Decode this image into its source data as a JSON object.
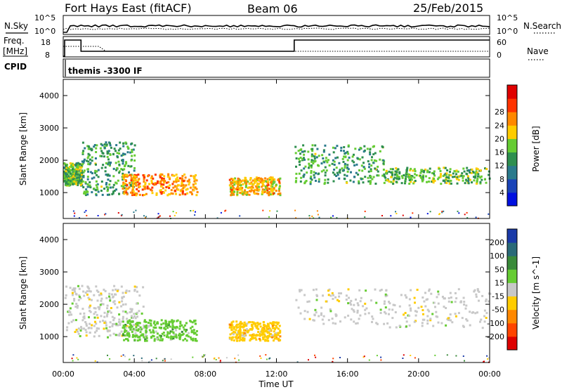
{
  "header": {
    "station": "Fort Hays East (fitACF)",
    "beam": "Beam 06",
    "date": "25/Feb/2015"
  },
  "top_panels": {
    "nsky_label": "N.Sky",
    "nsky_ticks": [
      "10^5",
      "10^0"
    ],
    "nsearch_label": "N.Search",
    "nsearch_ticks": [
      "10^5",
      "10^0"
    ],
    "freq_label": "Freq.",
    "freq_unit": "[MHz]",
    "freq_ticks": [
      "18",
      "8"
    ],
    "nave_label": "Nave",
    "nave_ticks": [
      "60",
      "0"
    ],
    "cpid_label": "CPID",
    "cpid_text": "themis -3300 IF"
  },
  "chart_data": [
    {
      "type": "heatmap",
      "ylabel": "Slant Range [km]",
      "xlabel": "Time UT",
      "x_ticks": [
        "00:00",
        "04:00",
        "08:00",
        "12:00",
        "16:00",
        "20:00",
        "00:00"
      ],
      "xlim_hours": [
        0,
        24
      ],
      "ylim": [
        200,
        4500
      ],
      "y_ticks": [
        1000,
        2000,
        3000,
        4000
      ],
      "colorbar": {
        "label": "Power [dB]",
        "ticks": [
          "4",
          "8",
          "12",
          "16",
          "20",
          "24",
          "28"
        ],
        "range": [
          0,
          30
        ],
        "colors": [
          "#0010e0",
          "#1a44b8",
          "#2a7a8c",
          "#2e8f4f",
          "#66cc33",
          "#ffcc00",
          "#ff8800",
          "#ff3300",
          "#e00000"
        ]
      },
      "regions": [
        {
          "t": [
            0.0,
            1.0
          ],
          "r": [
            1250,
            1950
          ],
          "value": 14
        },
        {
          "t": [
            1.0,
            4.0
          ],
          "r": [
            950,
            2600
          ],
          "value": 12
        },
        {
          "t": [
            3.3,
            7.5
          ],
          "r": [
            950,
            1600
          ],
          "value": 22
        },
        {
          "t": [
            9.3,
            12.2
          ],
          "r": [
            950,
            1500
          ],
          "value": 20
        },
        {
          "t": [
            13.0,
            18.0
          ],
          "r": [
            1300,
            2500
          ],
          "value": 12
        },
        {
          "t": [
            18.0,
            24.0
          ],
          "r": [
            1300,
            1800
          ],
          "value": 14
        }
      ]
    },
    {
      "type": "heatmap",
      "ylabel": "Slant Range [km]",
      "xlabel": "Time UT",
      "x_ticks": [
        "00:00",
        "04:00",
        "08:00",
        "12:00",
        "16:00",
        "20:00",
        "00:00"
      ],
      "xlim_hours": [
        0,
        24
      ],
      "ylim": [
        200,
        4500
      ],
      "y_ticks": [
        1000,
        2000,
        3000,
        4000
      ],
      "colorbar": {
        "label": "Velocity [m s^-1]",
        "ticks": [
          "200",
          "100",
          "50",
          "15",
          "-15",
          "-50",
          "-100",
          "-200"
        ],
        "colors": [
          "#1a3aa8",
          "#2a6a78",
          "#3a8a3a",
          "#66cc33",
          "#c8c8c8",
          "#ffcc00",
          "#ff8800",
          "#ff4400",
          "#dd0000"
        ]
      },
      "regions": [
        {
          "t": [
            0.0,
            4.5
          ],
          "r": [
            1000,
            2600
          ],
          "value": 0
        },
        {
          "t": [
            3.3,
            7.5
          ],
          "r": [
            900,
            1550
          ],
          "value": 40
        },
        {
          "t": [
            9.3,
            12.2
          ],
          "r": [
            900,
            1500
          ],
          "value": -30
        },
        {
          "t": [
            13.0,
            24.0
          ],
          "r": [
            1300,
            2500
          ],
          "value": 0
        }
      ]
    }
  ]
}
